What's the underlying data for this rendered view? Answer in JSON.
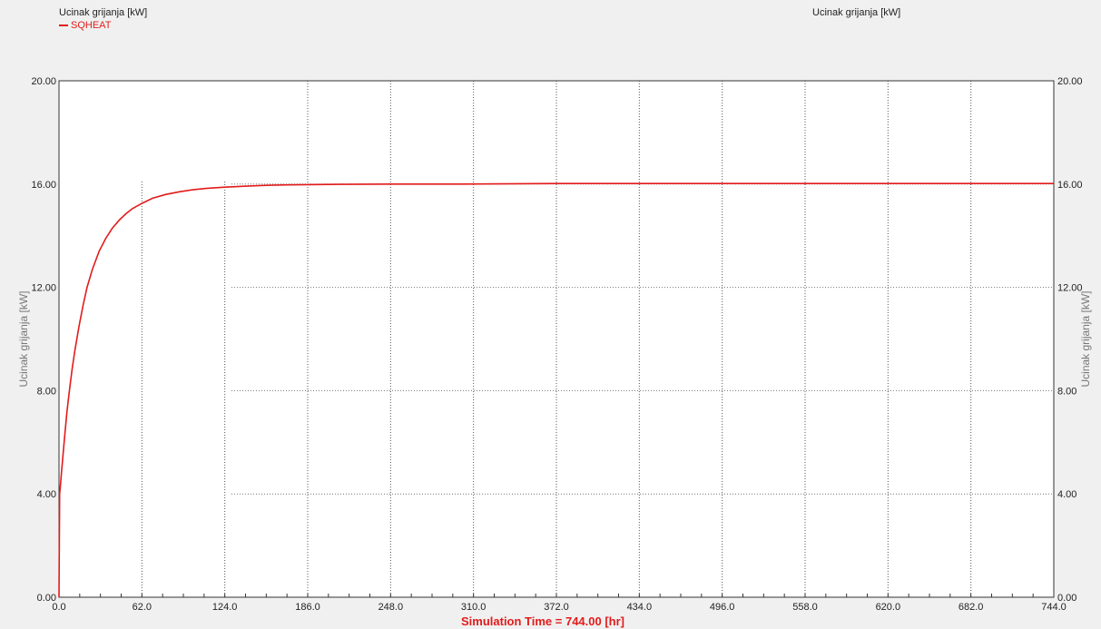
{
  "header": {
    "left_title": "Ucinak grijanja [kW]",
    "right_title": "Ucinak grijanja [kW]",
    "legend_label": "SQHEAT"
  },
  "colors": {
    "background": "#f0f0f0",
    "plot_background": "#ffffff",
    "series": "#e21b1b",
    "sim_time": "#e21b1b"
  },
  "chart_data": {
    "type": "line",
    "title": "Ucinak grijanja [kW]",
    "ylabel_left": "Ucinak grijanja [kW]",
    "ylabel_right": "Ucinak grijanja [kW]",
    "xlabel": "Simulation Time = 744.00 [hr]",
    "xlim": [
      0,
      744
    ],
    "ylim": [
      0,
      20
    ],
    "x_ticks": [
      "0.0",
      "62.0",
      "124.0",
      "186.0",
      "248.0",
      "310.0",
      "372.0",
      "434.0",
      "496.0",
      "558.0",
      "620.0",
      "682.0",
      "744.0"
    ],
    "y_ticks": [
      "0.00",
      "4.00",
      "8.00",
      "12.00",
      "16.00",
      "20.00"
    ],
    "grid": true,
    "legend": "top-left",
    "series": [
      {
        "name": "SQHEAT",
        "x": [
          0,
          0.5,
          1,
          2,
          4,
          6,
          8,
          10,
          12,
          15,
          18,
          21,
          25,
          30,
          35,
          40,
          45,
          50,
          55,
          62,
          70,
          80,
          90,
          100,
          110,
          124,
          140,
          155,
          170,
          186,
          210,
          248,
          300,
          372,
          434,
          496,
          558,
          620,
          682,
          744
        ],
        "y": [
          0,
          4.0,
          4.3,
          4.9,
          6.1,
          7.2,
          8.1,
          8.9,
          9.6,
          10.5,
          11.3,
          12.0,
          12.7,
          13.4,
          13.9,
          14.3,
          14.6,
          14.85,
          15.05,
          15.25,
          15.45,
          15.6,
          15.7,
          15.78,
          15.83,
          15.88,
          15.92,
          15.95,
          15.97,
          15.98,
          15.99,
          16.0,
          16.0,
          16.02,
          16.02,
          16.02,
          16.02,
          16.02,
          16.02,
          16.02
        ]
      }
    ]
  }
}
